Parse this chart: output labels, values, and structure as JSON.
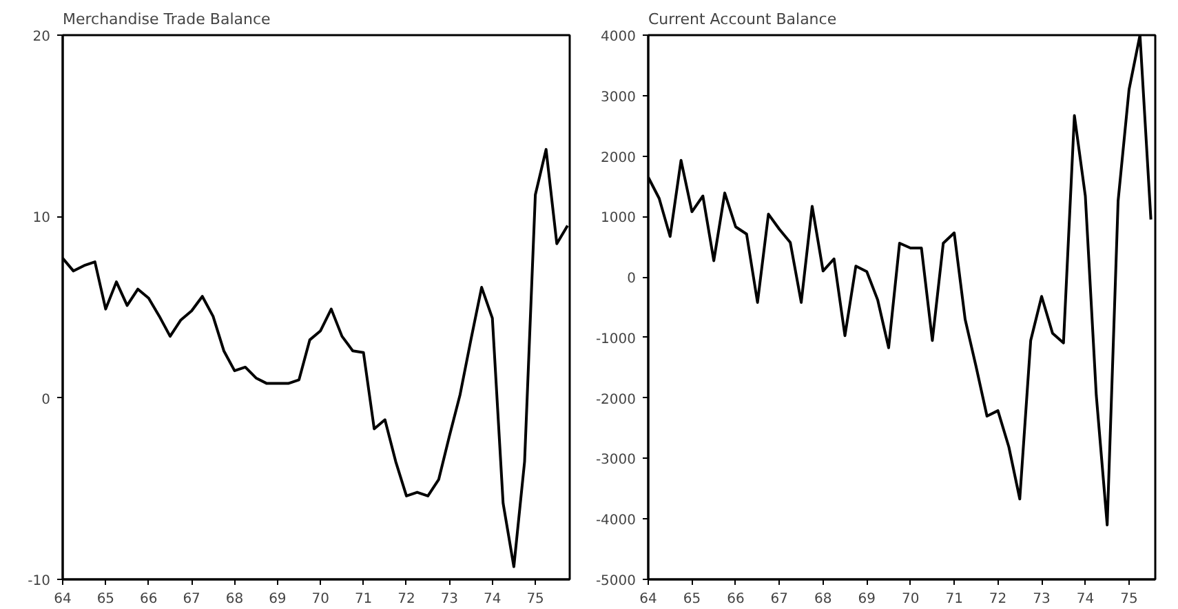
{
  "chart_data": [
    {
      "type": "line",
      "title": "Merchandise Trade Balance",
      "x": [
        64,
        64.25,
        64.5,
        64.75,
        65,
        65.25,
        65.5,
        65.75,
        66,
        66.25,
        66.5,
        66.75,
        67,
        67.25,
        67.5,
        67.75,
        68,
        68.25,
        68.5,
        68.75,
        69,
        69.25,
        69.5,
        69.75,
        70,
        70.25,
        70.5,
        70.75,
        71,
        71.25,
        71.5,
        71.75,
        72,
        72.25,
        72.5,
        72.75,
        73,
        73.25,
        73.5,
        73.75,
        74,
        74.25,
        74.5,
        74.75,
        75,
        75.25,
        75.5,
        75.75
      ],
      "series": [
        {
          "color": "#000000",
          "values": [
            7.7,
            7.0,
            7.3,
            7.5,
            4.9,
            6.4,
            5.1,
            6.0,
            5.5,
            4.5,
            3.4,
            4.3,
            4.8,
            5.6,
            4.5,
            2.6,
            1.5,
            1.7,
            1.1,
            0.8,
            0.8,
            0.8,
            1.0,
            3.2,
            3.7,
            4.9,
            3.4,
            2.6,
            2.5,
            -1.7,
            -1.2,
            -3.5,
            -5.4,
            -5.2,
            -5.4,
            -4.5,
            -2.1,
            0.2,
            3.2,
            6.1,
            4.4,
            -5.8,
            -9.3,
            -3.5,
            11.2,
            13.7,
            8.5,
            9.5
          ]
        }
      ],
      "xlim": [
        64,
        75.8
      ],
      "xticks": [
        64,
        65,
        66,
        67,
        68,
        69,
        70,
        71,
        72,
        73,
        74,
        75
      ],
      "ylim": [
        -10,
        20
      ],
      "yticks": [
        -10,
        0,
        10,
        20
      ],
      "grid": false,
      "marker": "none",
      "line_style": "solid"
    },
    {
      "type": "line",
      "title": "Current Account Balance",
      "x": [
        64,
        64.25,
        64.5,
        64.75,
        65,
        65.25,
        65.5,
        65.75,
        66,
        66.25,
        66.5,
        66.75,
        67,
        67.25,
        67.5,
        67.75,
        68,
        68.25,
        68.5,
        68.75,
        69,
        69.25,
        69.5,
        69.75,
        70,
        70.25,
        70.5,
        70.75,
        71,
        71.25,
        71.5,
        71.75,
        72,
        72.25,
        72.5,
        72.75,
        73,
        73.25,
        73.5,
        73.75,
        74,
        74.25,
        74.5,
        74.75,
        75,
        75.25,
        75.5
      ],
      "series": [
        {
          "color": "#000000",
          "values": [
            1650,
            1300,
            670,
            1930,
            1080,
            1340,
            270,
            1390,
            830,
            710,
            -420,
            1040,
            790,
            570,
            -420,
            1170,
            100,
            300,
            -970,
            180,
            90,
            -380,
            -1170,
            560,
            480,
            480,
            -1050,
            560,
            730,
            -700,
            -1480,
            -2300,
            -2210,
            -2810,
            -3670,
            -1050,
            -320,
            -930,
            -1090,
            2670,
            1340,
            -1950,
            -4100,
            1260,
            3100,
            4000,
            950
          ]
        }
      ],
      "xlim": [
        64,
        75.6
      ],
      "xticks": [
        64,
        65,
        66,
        67,
        68,
        69,
        70,
        71,
        72,
        73,
        74,
        75
      ],
      "ylim": [
        -5000,
        4000
      ],
      "yticks": [
        -5000,
        -4000,
        -3000,
        -2000,
        -1000,
        0,
        1000,
        2000,
        3000,
        4000
      ],
      "grid": false,
      "marker": "none",
      "line_style": "solid"
    }
  ]
}
